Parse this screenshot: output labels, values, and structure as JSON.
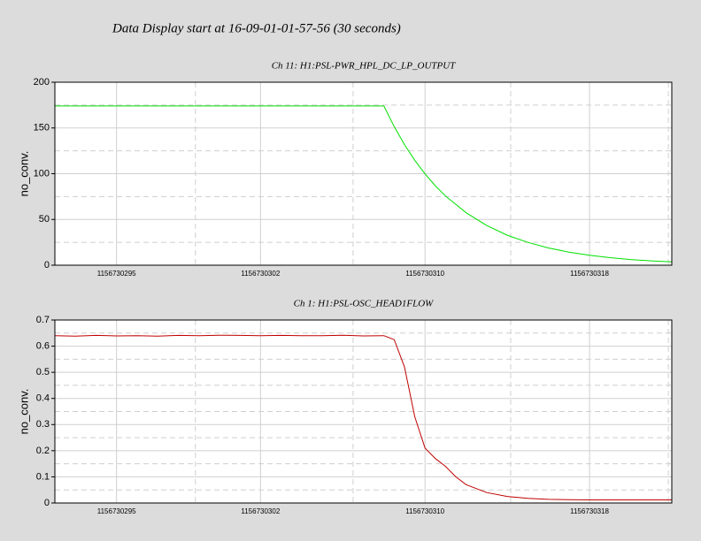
{
  "title": "Data Display start at 16-09-01-01-57-56 (30 seconds)",
  "chart_data": [
    {
      "type": "line",
      "title": "Ch 11: H1:PSL-PWR_HPL_DC_LP_OUTPUT",
      "ylabel": "no_conv.",
      "x": [
        1156730292,
        1156730293,
        1156730294,
        1156730295,
        1156730296,
        1156730297,
        1156730298,
        1156730299,
        1156730300,
        1156730301,
        1156730302,
        1156730303,
        1156730304,
        1156730305,
        1156730306,
        1156730307,
        1156730308,
        1156730308.5,
        1156730309,
        1156730309.5,
        1156730310,
        1156730310.5,
        1156730311,
        1156730312,
        1156730313,
        1156730314,
        1156730315,
        1156730316,
        1156730317,
        1156730318,
        1156730319,
        1156730320,
        1156730321,
        1156730322
      ],
      "values": [
        174,
        174,
        174,
        174,
        174,
        174,
        174,
        174,
        174,
        174,
        174,
        174,
        174,
        174,
        174,
        174,
        174,
        151.4,
        131.8,
        114.7,
        99.8,
        86.9,
        75.6,
        57.3,
        43.4,
        32.8,
        24.9,
        18.8,
        14.3,
        10.8,
        8.2,
        6.2,
        4.7,
        3.6
      ],
      "color": "#00e000",
      "xlim": [
        1156730292,
        1156730322
      ],
      "xticks": [
        1156730295,
        1156730302,
        1156730310,
        1156730318
      ],
      "ylim": [
        0,
        200
      ],
      "yticks": [
        0,
        50,
        100,
        150,
        200
      ],
      "grid": true
    },
    {
      "type": "line",
      "title": "Ch 1: H1:PSL-OSC_HEAD1FLOW",
      "ylabel": "no_conv.",
      "x": [
        1156730292,
        1156730293,
        1156730294,
        1156730295,
        1156730296,
        1156730297,
        1156730298,
        1156730299,
        1156730300,
        1156730301,
        1156730302,
        1156730303,
        1156730304,
        1156730305,
        1156730306,
        1156730307,
        1156730308,
        1156730308.5,
        1156730309,
        1156730309.5,
        1156730310,
        1156730310.5,
        1156730311,
        1156730311.5,
        1156730312,
        1156730313,
        1156730314,
        1156730315,
        1156730316,
        1156730317,
        1156730318,
        1156730319,
        1156730320,
        1156730321,
        1156730322
      ],
      "values": [
        0.64,
        0.638,
        0.641,
        0.639,
        0.64,
        0.638,
        0.641,
        0.64,
        0.642,
        0.641,
        0.64,
        0.641,
        0.64,
        0.64,
        0.642,
        0.639,
        0.64,
        0.625,
        0.52,
        0.33,
        0.21,
        0.17,
        0.14,
        0.1,
        0.07,
        0.04,
        0.025,
        0.018,
        0.014,
        0.013,
        0.012,
        0.012,
        0.012,
        0.012,
        0.012
      ],
      "color": "#c00000",
      "xlim": [
        1156730292,
        1156730322
      ],
      "xticks": [
        1156730295,
        1156730302,
        1156730310,
        1156730318
      ],
      "ylim": [
        0,
        0.7
      ],
      "yticks": [
        0,
        0.1,
        0.2,
        0.3,
        0.4,
        0.5,
        0.6,
        0.7
      ],
      "grid": true
    }
  ]
}
